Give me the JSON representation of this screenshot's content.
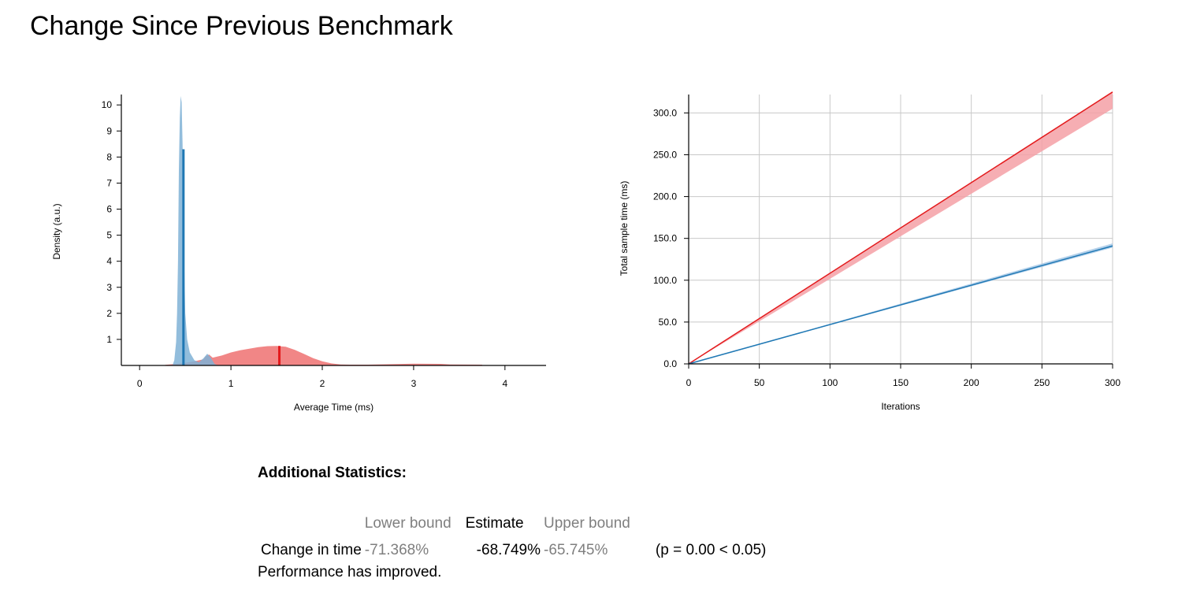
{
  "page_title": "Change Since Previous Benchmark",
  "colors": {
    "new": "#1f78b4",
    "old": "#e31a1c",
    "new_fill": "#7fb1d6",
    "old_fill": "#f08080"
  },
  "chart_data": [
    {
      "type": "area",
      "title": "",
      "xlabel": "Average Time (ms)",
      "ylabel": "Density (a.u.)",
      "xlim": [
        -0.2,
        4.45
      ],
      "ylim": [
        0,
        10.4
      ],
      "x_ticks": [
        "0",
        "1",
        "2",
        "3",
        "4"
      ],
      "y_ticks": [
        "1",
        "2",
        "3",
        "4",
        "5",
        "6",
        "7",
        "8",
        "9",
        "10"
      ],
      "grid": false,
      "legend": "none",
      "series": [
        {
          "color": "#e31a1c",
          "fill": "#f08080",
          "points": [
            [
              0.28,
              0.02
            ],
            [
              0.4,
              0.06
            ],
            [
              0.5,
              0.1
            ],
            [
              0.6,
              0.16
            ],
            [
              0.7,
              0.24
            ],
            [
              0.72,
              0.34
            ],
            [
              0.76,
              0.42
            ],
            [
              0.8,
              0.3
            ],
            [
              0.9,
              0.38
            ],
            [
              1.0,
              0.5
            ],
            [
              1.1,
              0.58
            ],
            [
              1.2,
              0.64
            ],
            [
              1.3,
              0.7
            ],
            [
              1.4,
              0.74
            ],
            [
              1.5,
              0.75
            ],
            [
              1.6,
              0.72
            ],
            [
              1.7,
              0.6
            ],
            [
              1.8,
              0.44
            ],
            [
              1.9,
              0.28
            ],
            [
              2.0,
              0.16
            ],
            [
              2.1,
              0.08
            ],
            [
              2.2,
              0.04
            ],
            [
              2.3,
              0.03
            ],
            [
              2.5,
              0.03
            ],
            [
              2.8,
              0.05
            ],
            [
              3.0,
              0.07
            ],
            [
              3.3,
              0.06
            ],
            [
              3.4,
              0.04
            ],
            [
              3.75,
              0.03
            ]
          ],
          "marker_x": 1.53,
          "marker_y": 0.75
        },
        {
          "color": "#1f78b4",
          "fill": "#7fb1d6",
          "points": [
            [
              0.36,
              0.0
            ],
            [
              0.38,
              0.2
            ],
            [
              0.4,
              0.9
            ],
            [
              0.41,
              2.0
            ],
            [
              0.42,
              4.0
            ],
            [
              0.43,
              7.5
            ],
            [
              0.44,
              9.5
            ],
            [
              0.45,
              10.35
            ],
            [
              0.46,
              10.1
            ],
            [
              0.47,
              8.5
            ],
            [
              0.48,
              6.0
            ],
            [
              0.49,
              3.6
            ],
            [
              0.5,
              2.0
            ],
            [
              0.52,
              1.0
            ],
            [
              0.55,
              0.5
            ],
            [
              0.6,
              0.2
            ],
            [
              0.65,
              0.12
            ],
            [
              0.7,
              0.28
            ],
            [
              0.74,
              0.45
            ],
            [
              0.78,
              0.3
            ],
            [
              0.82,
              0.06
            ],
            [
              0.86,
              0.0
            ]
          ],
          "marker_x": 0.48,
          "marker_y": 8.3
        }
      ]
    },
    {
      "type": "line",
      "title": "",
      "xlabel": "Iterations",
      "ylabel": "Total sample time (ms)",
      "xlim": [
        0,
        300
      ],
      "ylim": [
        0,
        322
      ],
      "x_ticks": [
        "0",
        "50",
        "100",
        "150",
        "200",
        "250",
        "300"
      ],
      "y_ticks": [
        "0.0",
        "50.0",
        "100.0",
        "150.0",
        "200.0",
        "250.0",
        "300.0"
      ],
      "grid": true,
      "legend": "none",
      "series": [
        {
          "color": "#e31a1c",
          "fill": "#f4a0a6",
          "x": [
            0,
            300
          ],
          "y": [
            0,
            325
          ],
          "band_upper": [
            0,
            325
          ],
          "band_lower": [
            0,
            305
          ]
        },
        {
          "color": "#1f78b4",
          "fill": "#a6c8e6",
          "x": [
            0,
            300
          ],
          "y": [
            0,
            141
          ],
          "band_upper": [
            0,
            144
          ],
          "band_lower": [
            0,
            139
          ]
        }
      ]
    }
  ],
  "stats": {
    "heading": "Additional Statistics:",
    "col_lower": "Lower bound",
    "col_estimate": "Estimate",
    "col_upper": "Upper bound",
    "row_label": "Change in time",
    "lower": "-71.368%",
    "estimate": "-68.749%",
    "upper": "-65.745%",
    "p_value": "(p = 0.00 < 0.05)",
    "verdict": "Performance has improved."
  }
}
